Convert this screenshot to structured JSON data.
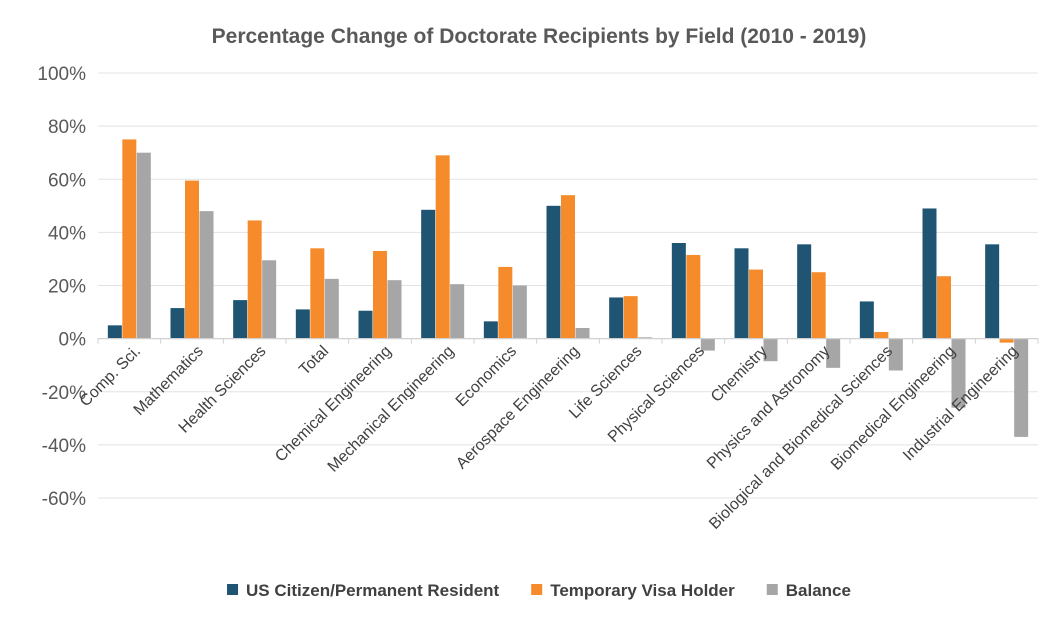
{
  "chart_data": {
    "type": "bar",
    "title": "Percentage Change of Doctorate Recipients by Field (2010 - 2019)",
    "xlabel": "",
    "ylabel": "",
    "ylim": [
      -60,
      100
    ],
    "yticks": [
      100,
      80,
      60,
      40,
      20,
      0,
      -20,
      -40,
      -60
    ],
    "ytick_labels": [
      "100%",
      "80%",
      "60%",
      "40%",
      "20%",
      "0%",
      "-20%",
      "-40%",
      "-60%"
    ],
    "grid": true,
    "legend_position": "bottom",
    "categories": [
      "Comp. Sci.",
      "Mathematics",
      "Health Sciences",
      "Total",
      "Chemical Engineering",
      "Mechanical Engineering",
      "Economics",
      "Aerospace Engineering",
      "Life Sciences",
      "Physical Sciences",
      "Chemistry",
      "Physics and Astronomy",
      "Biological and Biomedical Sciences",
      "Biomedical Engineering",
      "Industrial Engineering"
    ],
    "series": [
      {
        "name": "US Citizen/Permanent Resident",
        "color": "#1f5473",
        "values": [
          5,
          11.5,
          14.5,
          11,
          10.5,
          48.5,
          6.5,
          50,
          15.5,
          36,
          34,
          35.5,
          14,
          49,
          35.5
        ]
      },
      {
        "name": "Temporary Visa Holder",
        "color": "#f58b2a",
        "values": [
          75,
          59.5,
          44.5,
          34,
          33,
          69,
          27,
          54,
          16,
          31.5,
          26,
          25,
          2.5,
          23.5,
          -1.5
        ]
      },
      {
        "name": "Balance",
        "color": "#a6a6a6",
        "values": [
          70,
          48,
          29.5,
          22.5,
          22,
          20.5,
          20,
          4,
          0.5,
          -4.5,
          -8.5,
          -11,
          -12,
          -26,
          -37
        ]
      }
    ]
  }
}
